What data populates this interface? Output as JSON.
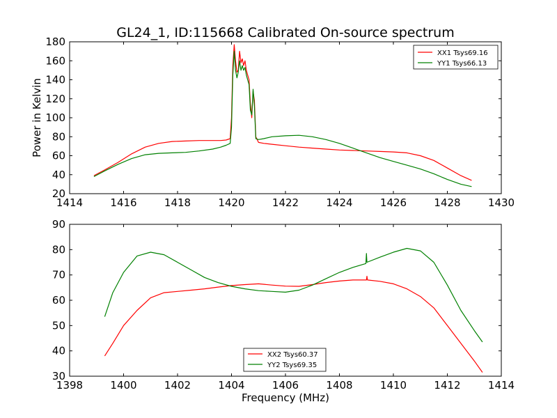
{
  "chart_data": [
    {
      "type": "line",
      "title": "GL24_1, ID:115668 Calibrated On-source spectrum",
      "xlabel": "",
      "ylabel": "Power in Kelvin",
      "xlim": [
        1414,
        1430
      ],
      "ylim": [
        20,
        180
      ],
      "xticks": [
        "1414",
        "1416",
        "1418",
        "1420",
        "1422",
        "1424",
        "1426",
        "1428",
        "1430"
      ],
      "yticks": [
        "20",
        "40",
        "60",
        "80",
        "100",
        "120",
        "140",
        "160",
        "180"
      ],
      "grid": false,
      "legend_position": "top-right",
      "series": [
        {
          "name": "XX1 Tsys69.16",
          "color": "#ff0000",
          "x": [
            1414.9,
            1415.3,
            1415.8,
            1416.3,
            1416.8,
            1417.3,
            1417.8,
            1418.3,
            1418.8,
            1419.3,
            1419.6,
            1419.8,
            1419.95,
            1420.0,
            1420.05,
            1420.1,
            1420.15,
            1420.2,
            1420.25,
            1420.3,
            1420.35,
            1420.4,
            1420.45,
            1420.5,
            1420.55,
            1420.6,
            1420.65,
            1420.7,
            1420.75,
            1420.8,
            1420.85,
            1420.9,
            1421.0,
            1421.2,
            1421.5,
            1422.0,
            1422.5,
            1423.0,
            1423.5,
            1424.0,
            1424.5,
            1425.0,
            1425.5,
            1426.0,
            1426.5,
            1427.0,
            1427.5,
            1428.0,
            1428.5,
            1428.9
          ],
          "y": [
            39,
            45,
            53,
            62,
            69,
            73,
            75,
            75.5,
            76,
            76,
            76,
            76.5,
            78,
            100,
            155,
            177,
            160,
            148,
            150,
            170,
            158,
            162,
            155,
            160,
            150,
            145,
            140,
            115,
            100,
            128,
            118,
            80,
            74,
            73,
            72,
            70.5,
            69,
            68,
            67,
            66,
            65.5,
            65,
            64.5,
            64,
            63,
            60,
            55,
            47,
            39,
            34
          ]
        },
        {
          "name": "YY1 Tsys66.13",
          "color": "#008000",
          "x": [
            1414.9,
            1415.3,
            1415.8,
            1416.3,
            1416.8,
            1417.3,
            1417.8,
            1418.3,
            1418.8,
            1419.3,
            1419.6,
            1419.8,
            1419.95,
            1420.0,
            1420.05,
            1420.1,
            1420.15,
            1420.2,
            1420.25,
            1420.3,
            1420.35,
            1420.4,
            1420.45,
            1420.5,
            1420.55,
            1420.6,
            1420.65,
            1420.7,
            1420.75,
            1420.8,
            1420.85,
            1420.9,
            1421.0,
            1421.2,
            1421.5,
            1422.0,
            1422.5,
            1423.0,
            1423.5,
            1424.0,
            1424.5,
            1425.0,
            1425.5,
            1426.0,
            1426.5,
            1427.0,
            1427.5,
            1428.0,
            1428.5,
            1428.9
          ],
          "y": [
            38,
            44,
            51,
            57,
            61,
            62.5,
            63,
            63.5,
            65,
            67,
            69,
            71,
            73,
            90,
            145,
            170,
            150,
            142,
            148,
            160,
            150,
            155,
            150,
            153,
            145,
            140,
            135,
            108,
            103,
            130,
            112,
            78,
            77,
            78,
            80,
            81,
            81.5,
            80,
            77,
            73,
            68,
            63,
            58,
            54,
            50,
            46,
            41,
            35,
            30,
            27.5
          ]
        }
      ]
    },
    {
      "type": "line",
      "title": "",
      "xlabel": "Frequency (MHz)",
      "ylabel": "",
      "xlim": [
        1398,
        1414
      ],
      "ylim": [
        30,
        90
      ],
      "xticks": [
        "1398",
        "1400",
        "1402",
        "1404",
        "1406",
        "1408",
        "1410",
        "1412",
        "1414"
      ],
      "yticks": [
        "30",
        "40",
        "50",
        "60",
        "70",
        "80",
        "90"
      ],
      "grid": false,
      "legend_position": "bottom-center",
      "series": [
        {
          "name": "XX2 Tsys60.37",
          "color": "#ff0000",
          "x": [
            1399.3,
            1399.6,
            1400.0,
            1400.5,
            1401.0,
            1401.5,
            1402.0,
            1402.5,
            1403.0,
            1403.5,
            1404.0,
            1404.5,
            1405.0,
            1405.5,
            1406.0,
            1406.5,
            1407.0,
            1407.5,
            1408.0,
            1408.5,
            1409.0,
            1409.02,
            1409.04,
            1409.5,
            1410.0,
            1410.5,
            1411.0,
            1411.5,
            1412.0,
            1412.5,
            1413.0,
            1413.3
          ],
          "y": [
            38,
            43,
            50,
            56,
            61,
            63,
            63.5,
            64,
            64.5,
            65.2,
            65.8,
            66.2,
            66.5,
            66,
            65.6,
            65.5,
            66.2,
            67,
            67.6,
            68,
            68,
            69.5,
            68,
            67.5,
            66.5,
            64.5,
            61.5,
            57,
            50,
            43,
            36,
            31.5
          ]
        },
        {
          "name": "YY2 Tsys69.35",
          "color": "#008000",
          "x": [
            1399.3,
            1399.6,
            1400.0,
            1400.5,
            1401.0,
            1401.5,
            1402.0,
            1402.5,
            1403.0,
            1403.5,
            1404.0,
            1404.5,
            1405.0,
            1405.5,
            1406.0,
            1406.5,
            1407.0,
            1407.5,
            1408.0,
            1408.5,
            1408.98,
            1409.0,
            1409.02,
            1409.5,
            1410.0,
            1410.5,
            1411.0,
            1411.5,
            1412.0,
            1412.5,
            1413.0,
            1413.3
          ],
          "y": [
            53.5,
            63,
            71,
            77.5,
            79,
            78,
            75,
            72,
            69,
            67,
            65.5,
            64.5,
            63.8,
            63.5,
            63.2,
            64,
            66,
            68.5,
            71,
            73,
            74.5,
            78.5,
            75,
            77,
            79,
            80.5,
            79.5,
            75,
            66,
            56,
            48,
            43.5
          ]
        }
      ]
    }
  ]
}
